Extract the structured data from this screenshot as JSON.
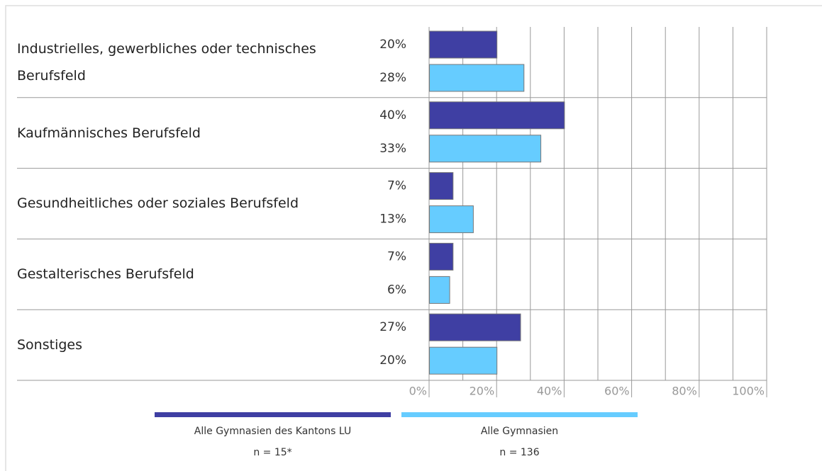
{
  "chart_data": {
    "type": "hbar",
    "categories": [
      "Industrielles, gewerbliches oder technisches Berufsfeld",
      "Kaufmännisches Berufsfeld",
      "Gesundheitliches oder soziales Berufsfeld",
      "Gestalterisches Berufsfeld",
      "Sonstiges"
    ],
    "series": [
      {
        "name": "Alle Gymnasien des Kantons LU",
        "note": "n = 15*",
        "color": "#3f3fa3",
        "values": [
          20,
          40,
          7,
          7,
          27
        ],
        "value_labels": [
          "20%",
          "40%",
          "7%",
          "7%",
          "27%"
        ]
      },
      {
        "name": "Alle Gymnasien",
        "note": "n = 136",
        "color": "#66ccff",
        "values": [
          28,
          33,
          13,
          6,
          20
        ],
        "value_labels": [
          "28%",
          "33%",
          "13%",
          "6%",
          "20%"
        ]
      }
    ],
    "xlim": [
      0,
      100
    ],
    "xticks": [
      {
        "value": 0,
        "label": "0%"
      },
      {
        "value": 20,
        "label": "20%"
      },
      {
        "value": 40,
        "label": "40%"
      },
      {
        "value": 60,
        "label": "60%"
      },
      {
        "value": 80,
        "label": "80%"
      },
      {
        "value": 100,
        "label": "100%"
      }
    ],
    "minor_xticks": [
      10,
      30,
      50,
      70,
      90
    ],
    "grid": true
  }
}
